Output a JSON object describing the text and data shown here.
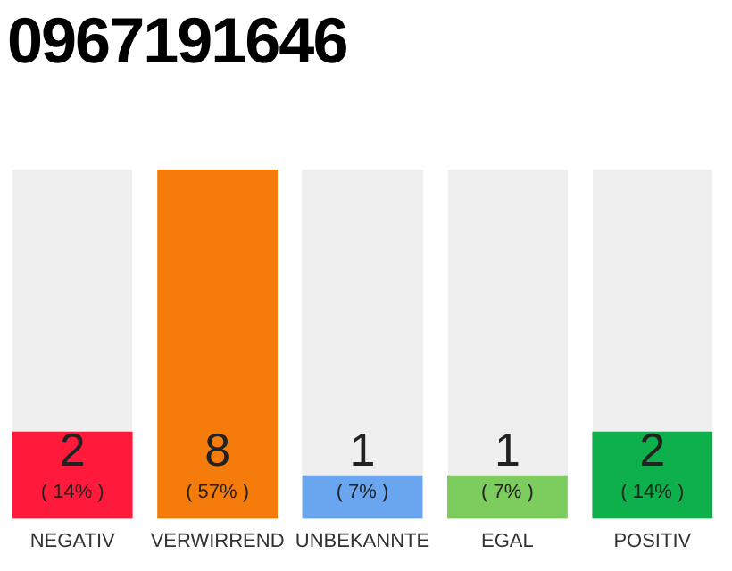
{
  "chart_data": {
    "type": "bar",
    "title": "0967191646",
    "categories": [
      "NEGATIV",
      "VERWIRREND",
      "UNBEKANNTE",
      "EGAL",
      "POSITIV"
    ],
    "values": [
      2,
      8,
      1,
      1,
      2
    ],
    "colors": [
      "#ff1a3c",
      "#f57c0b",
      "#6aa6f0",
      "#7dcc5e",
      "#0db04b"
    ],
    "data_labels": true,
    "annotations": [
      "( 14% )",
      "( 57% )",
      "( 7% )",
      "( 7% )",
      "( 14% )"
    ],
    "grid": false,
    "legend": false
  }
}
